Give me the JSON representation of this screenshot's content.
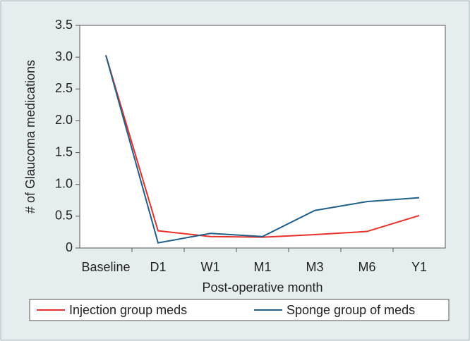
{
  "chart_data": {
    "type": "line",
    "x_label": "Post-operative month",
    "y_label": "# of Glaucoma medications",
    "categories": [
      "Baseline",
      "D1",
      "W1",
      "M1",
      "M3",
      "M6",
      "Y1"
    ],
    "series": [
      {
        "name": "Injection group meds",
        "color": "#e8302a",
        "values": [
          3.03,
          0.27,
          0.18,
          0.17,
          0.21,
          0.26,
          0.51
        ]
      },
      {
        "name": "Sponge group of meds",
        "color": "#1f5f8b",
        "values": [
          3.03,
          0.08,
          0.23,
          0.18,
          0.59,
          0.73,
          0.79
        ]
      }
    ],
    "ylim": [
      0,
      3.5
    ],
    "yticks": [
      0,
      0.5,
      {
        "value": 1,
        "label": "1.0"
      },
      1.5,
      {
        "value": 2,
        "label": "2.0"
      },
      2.5,
      {
        "value": 3,
        "label": "3.0"
      },
      3.5
    ]
  }
}
